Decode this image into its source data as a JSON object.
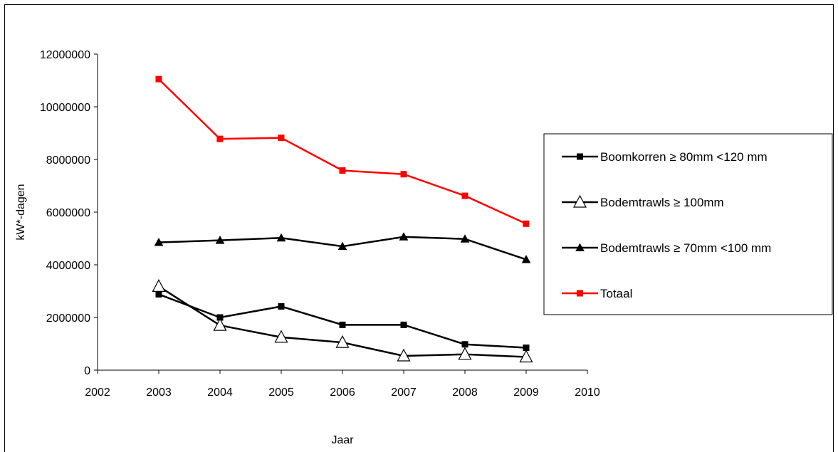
{
  "chart_data": {
    "type": "line",
    "title": "",
    "xlabel": "Jaar",
    "ylabel": "kW*-dagen",
    "xlim": [
      2002,
      2010
    ],
    "ylim": [
      0,
      12000000
    ],
    "x_ticks": [
      "2002",
      "2003",
      "2004",
      "2005",
      "2006",
      "2007",
      "2008",
      "2009",
      "2010"
    ],
    "y_ticks": [
      "0",
      "2000000",
      "4000000",
      "6000000",
      "8000000",
      "10000000",
      "12000000"
    ],
    "grid": false,
    "legend_position": "right",
    "x": [
      2003,
      2004,
      2005,
      2006,
      2007,
      2008,
      2009
    ],
    "series": [
      {
        "name": "Boomkorren  ≥ 80mm <120 mm",
        "color": "#000000",
        "marker": "square-filled",
        "values": [
          2880000,
          2000000,
          2420000,
          1720000,
          1720000,
          980000,
          850000
        ]
      },
      {
        "name": "Bodemtrawls ≥ 100mm",
        "color": "#000000",
        "marker": "triangle-open",
        "values": [
          3180000,
          1700000,
          1250000,
          1050000,
          540000,
          600000,
          500000
        ]
      },
      {
        "name": "Bodemtrawls ≥ 70mm <100 mm",
        "color": "#000000",
        "marker": "triangle-filled",
        "values": [
          4850000,
          4930000,
          5020000,
          4700000,
          5060000,
          4980000,
          4200000
        ]
      },
      {
        "name": "Totaal",
        "color": "#ff0000",
        "marker": "square-filled",
        "values": [
          11050000,
          8780000,
          8820000,
          7580000,
          7440000,
          6620000,
          5560000
        ]
      }
    ]
  }
}
